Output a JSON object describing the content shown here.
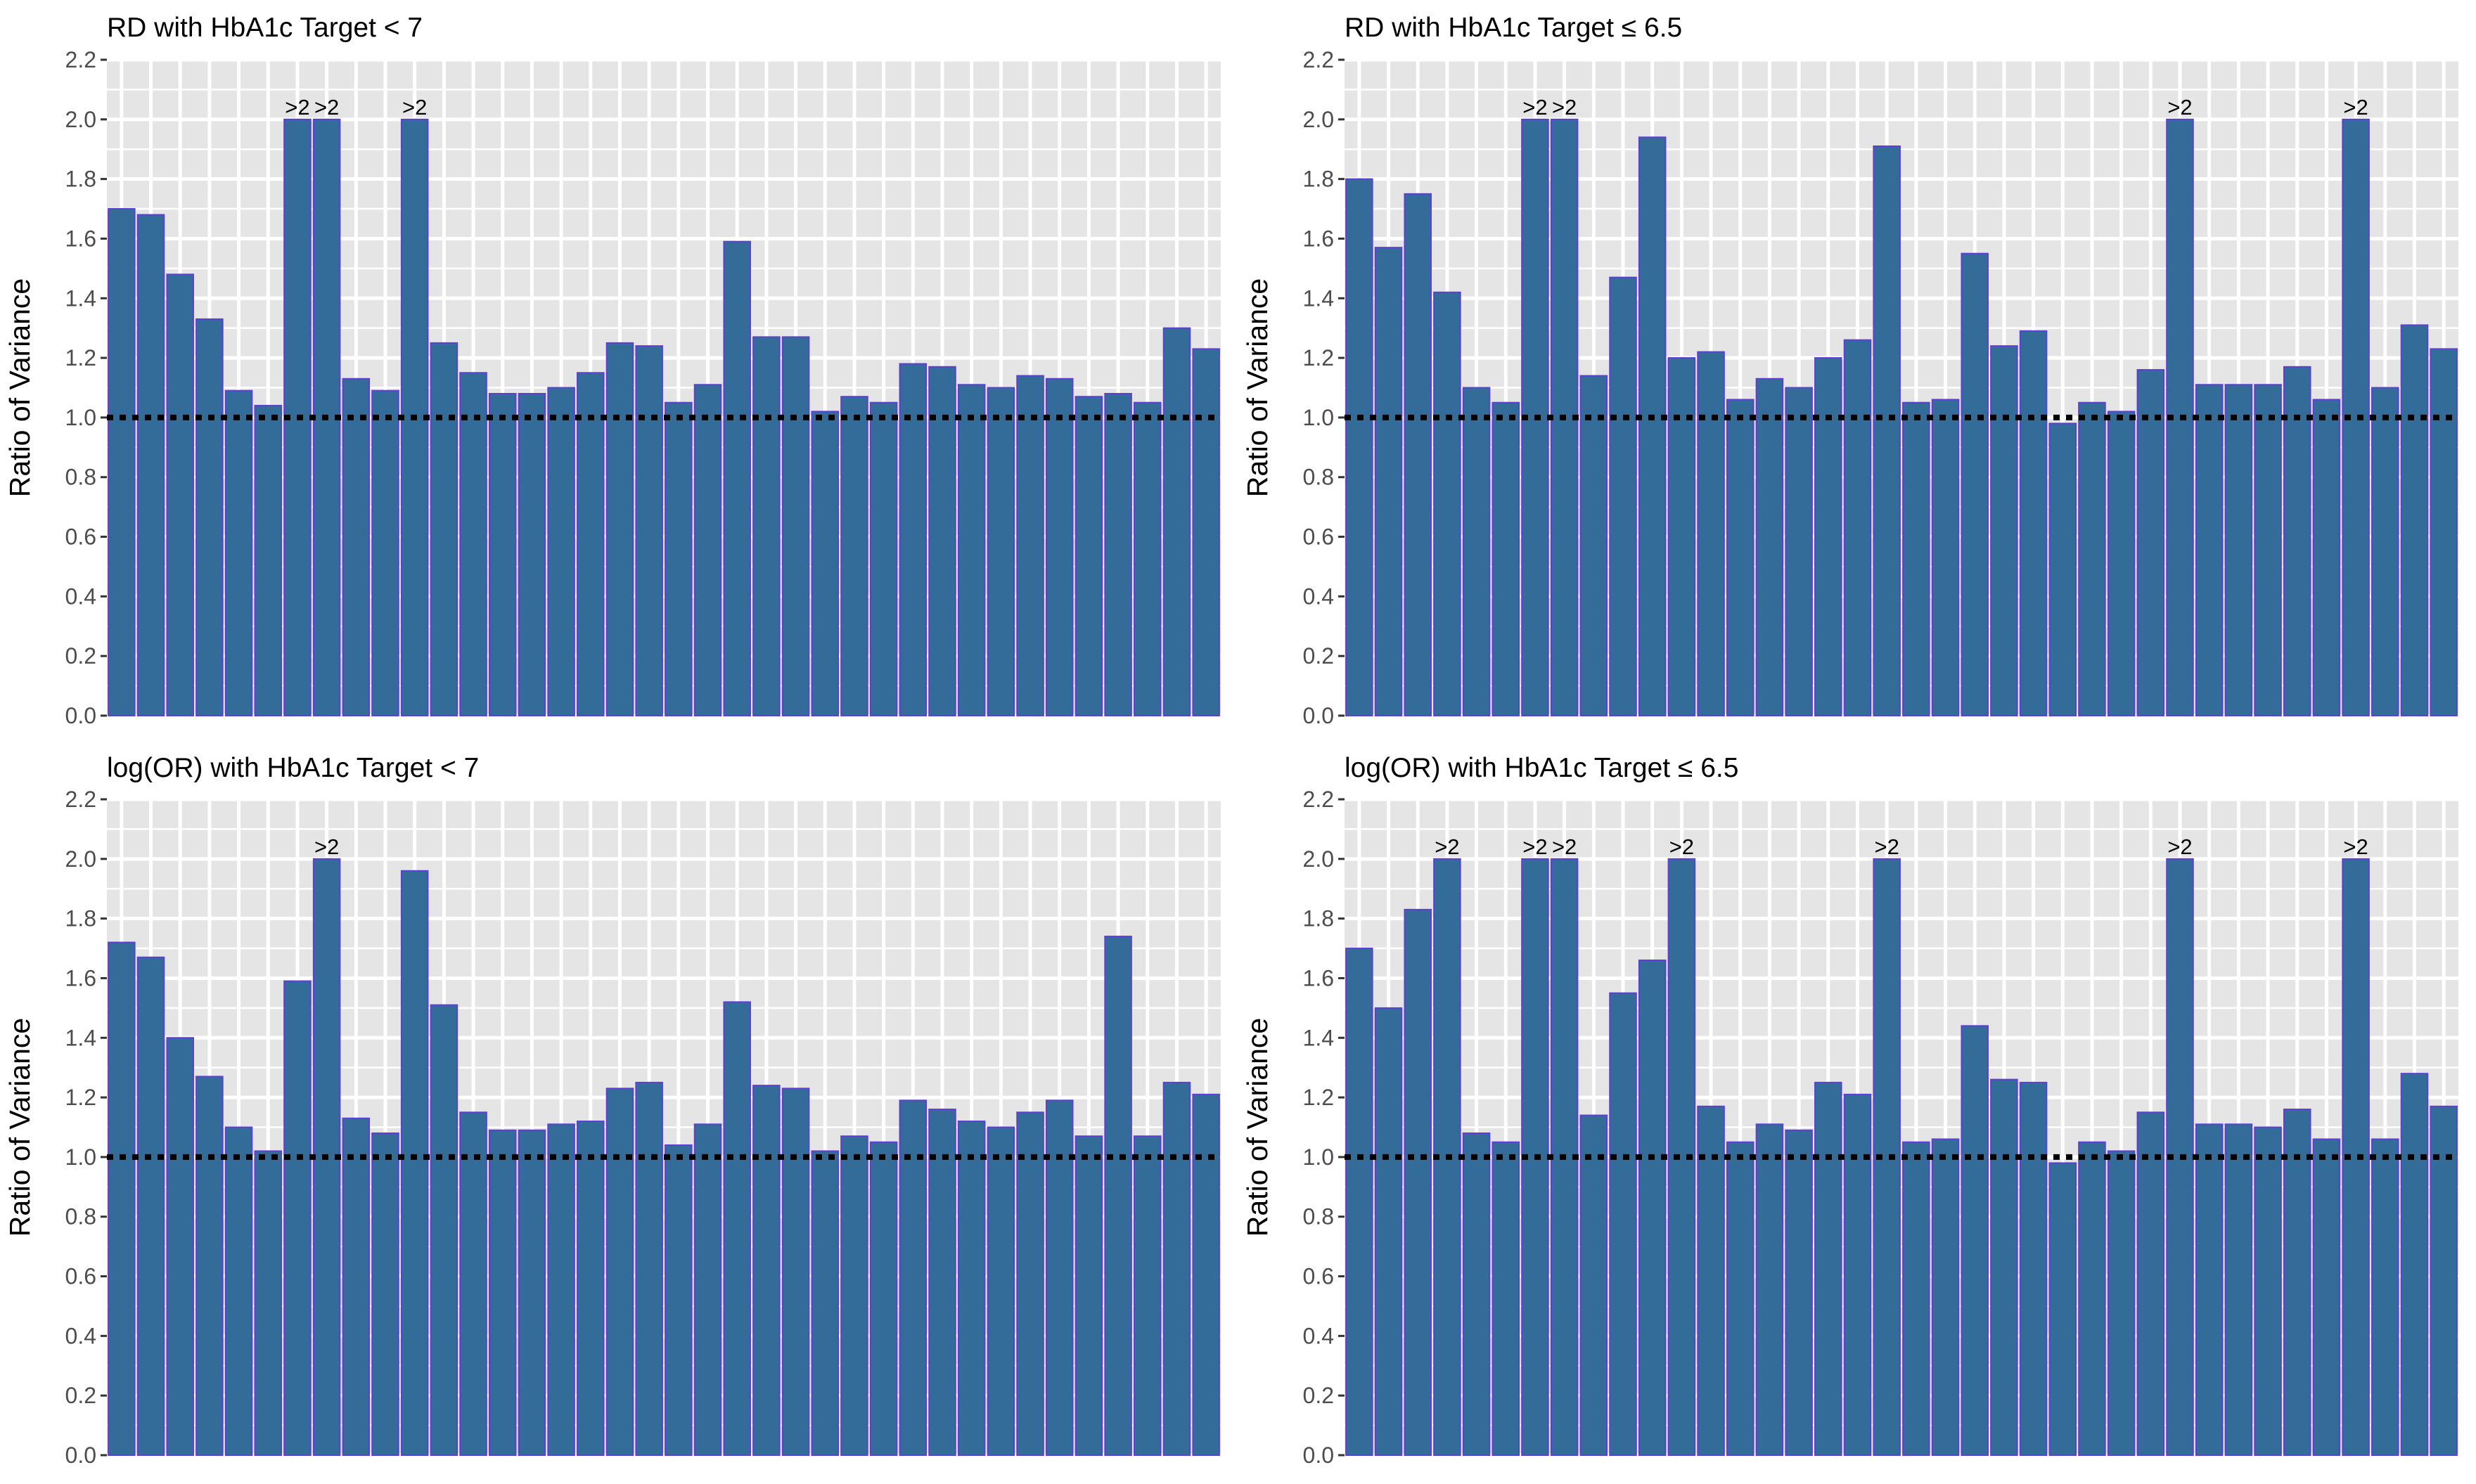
{
  "chart_data": [
    {
      "type": "bar",
      "title": "RD with HbA1c Target < 7",
      "ylabel": "Ratio of Variance",
      "xlabel": "",
      "ylim": [
        0,
        2.2
      ],
      "yticks": [
        "0.0",
        "0.2",
        "0.4",
        "0.6",
        "0.8",
        "1.0",
        "1.2",
        "1.4",
        "1.6",
        "1.8",
        "2.0",
        "2.2"
      ],
      "reference_line": 1.0,
      "cap_value": 2.0,
      "cap_label": ">2",
      "values": [
        1.7,
        1.68,
        1.48,
        1.33,
        1.09,
        1.04,
        2.0,
        2.0,
        1.13,
        1.09,
        2.0,
        1.25,
        1.15,
        1.08,
        1.08,
        1.1,
        1.15,
        1.25,
        1.24,
        1.05,
        1.11,
        1.59,
        1.27,
        1.27,
        1.02,
        1.07,
        1.05,
        1.18,
        1.17,
        1.11,
        1.1,
        1.14,
        1.13,
        1.07,
        1.08,
        1.05,
        1.3,
        1.23
      ],
      "over_cap": [
        false,
        false,
        false,
        false,
        false,
        false,
        true,
        true,
        false,
        false,
        true,
        false,
        false,
        false,
        false,
        false,
        false,
        false,
        false,
        false,
        false,
        false,
        false,
        false,
        false,
        false,
        false,
        false,
        false,
        false,
        false,
        false,
        false,
        false,
        false,
        false,
        false,
        false
      ],
      "grid": true,
      "bar_color": "#336C99",
      "bar_edge_color": "#5D3FD3"
    },
    {
      "type": "bar",
      "title": "RD with HbA1c Target ≤ 6.5",
      "ylabel": "Ratio of Variance",
      "xlabel": "",
      "ylim": [
        0,
        2.2
      ],
      "yticks": [
        "0.0",
        "0.2",
        "0.4",
        "0.6",
        "0.8",
        "1.0",
        "1.2",
        "1.4",
        "1.6",
        "1.8",
        "2.0",
        "2.2"
      ],
      "reference_line": 1.0,
      "cap_value": 2.0,
      "cap_label": ">2",
      "values": [
        1.8,
        1.57,
        1.75,
        1.42,
        1.1,
        1.05,
        2.0,
        2.0,
        1.14,
        1.47,
        1.94,
        1.2,
        1.22,
        1.06,
        1.13,
        1.1,
        1.2,
        1.26,
        1.91,
        1.05,
        1.06,
        1.55,
        1.24,
        1.29,
        0.98,
        1.05,
        1.02,
        1.16,
        2.0,
        1.11,
        1.11,
        1.11,
        1.17,
        1.06,
        2.0,
        1.1,
        1.31,
        1.23
      ],
      "over_cap": [
        false,
        false,
        false,
        false,
        false,
        false,
        true,
        true,
        false,
        false,
        false,
        false,
        false,
        false,
        false,
        false,
        false,
        false,
        false,
        false,
        false,
        false,
        false,
        false,
        false,
        false,
        false,
        false,
        true,
        false,
        false,
        false,
        false,
        false,
        true,
        false,
        false,
        false
      ],
      "grid": true,
      "bar_color": "#336C99",
      "bar_edge_color": "#5D3FD3"
    },
    {
      "type": "bar",
      "title": "log(OR) with HbA1c Target < 7",
      "ylabel": "Ratio of Variance",
      "xlabel": "",
      "ylim": [
        0,
        2.2
      ],
      "yticks": [
        "0.0",
        "0.2",
        "0.4",
        "0.6",
        "0.8",
        "1.0",
        "1.2",
        "1.4",
        "1.6",
        "1.8",
        "2.0",
        "2.2"
      ],
      "reference_line": 1.0,
      "cap_value": 2.0,
      "cap_label": ">2",
      "values": [
        1.72,
        1.67,
        1.4,
        1.27,
        1.1,
        1.02,
        1.59,
        2.0,
        1.13,
        1.08,
        1.96,
        1.51,
        1.15,
        1.09,
        1.09,
        1.11,
        1.12,
        1.23,
        1.25,
        1.04,
        1.11,
        1.52,
        1.24,
        1.23,
        1.02,
        1.07,
        1.05,
        1.19,
        1.16,
        1.12,
        1.1,
        1.15,
        1.19,
        1.07,
        1.74,
        1.07,
        1.25,
        1.21
      ],
      "over_cap": [
        false,
        false,
        false,
        false,
        false,
        false,
        false,
        true,
        false,
        false,
        false,
        false,
        false,
        false,
        false,
        false,
        false,
        false,
        false,
        false,
        false,
        false,
        false,
        false,
        false,
        false,
        false,
        false,
        false,
        false,
        false,
        false,
        false,
        false,
        false,
        false,
        false,
        false
      ],
      "grid": true,
      "bar_color": "#336C99",
      "bar_edge_color": "#5D3FD3"
    },
    {
      "type": "bar",
      "title": "log(OR) with HbA1c Target ≤ 6.5",
      "ylabel": "Ratio of Variance",
      "xlabel": "",
      "ylim": [
        0,
        2.2
      ],
      "yticks": [
        "0.0",
        "0.2",
        "0.4",
        "0.6",
        "0.8",
        "1.0",
        "1.2",
        "1.4",
        "1.6",
        "1.8",
        "2.0",
        "2.2"
      ],
      "reference_line": 1.0,
      "cap_value": 2.0,
      "cap_label": ">2",
      "values": [
        1.7,
        1.5,
        1.83,
        2.0,
        1.08,
        1.05,
        2.0,
        2.0,
        1.14,
        1.55,
        1.66,
        2.0,
        1.17,
        1.05,
        1.11,
        1.09,
        1.25,
        1.21,
        2.0,
        1.05,
        1.06,
        1.44,
        1.26,
        1.25,
        0.98,
        1.05,
        1.02,
        1.15,
        2.0,
        1.11,
        1.11,
        1.1,
        1.16,
        1.06,
        2.0,
        1.06,
        1.28,
        1.17
      ],
      "over_cap": [
        false,
        false,
        false,
        true,
        false,
        false,
        true,
        true,
        false,
        false,
        false,
        true,
        false,
        false,
        false,
        false,
        false,
        false,
        true,
        false,
        false,
        false,
        false,
        false,
        false,
        false,
        false,
        false,
        true,
        false,
        false,
        false,
        false,
        false,
        true,
        false,
        false,
        false
      ],
      "grid": true,
      "bar_color": "#336C99",
      "bar_edge_color": "#5D3FD3"
    }
  ]
}
